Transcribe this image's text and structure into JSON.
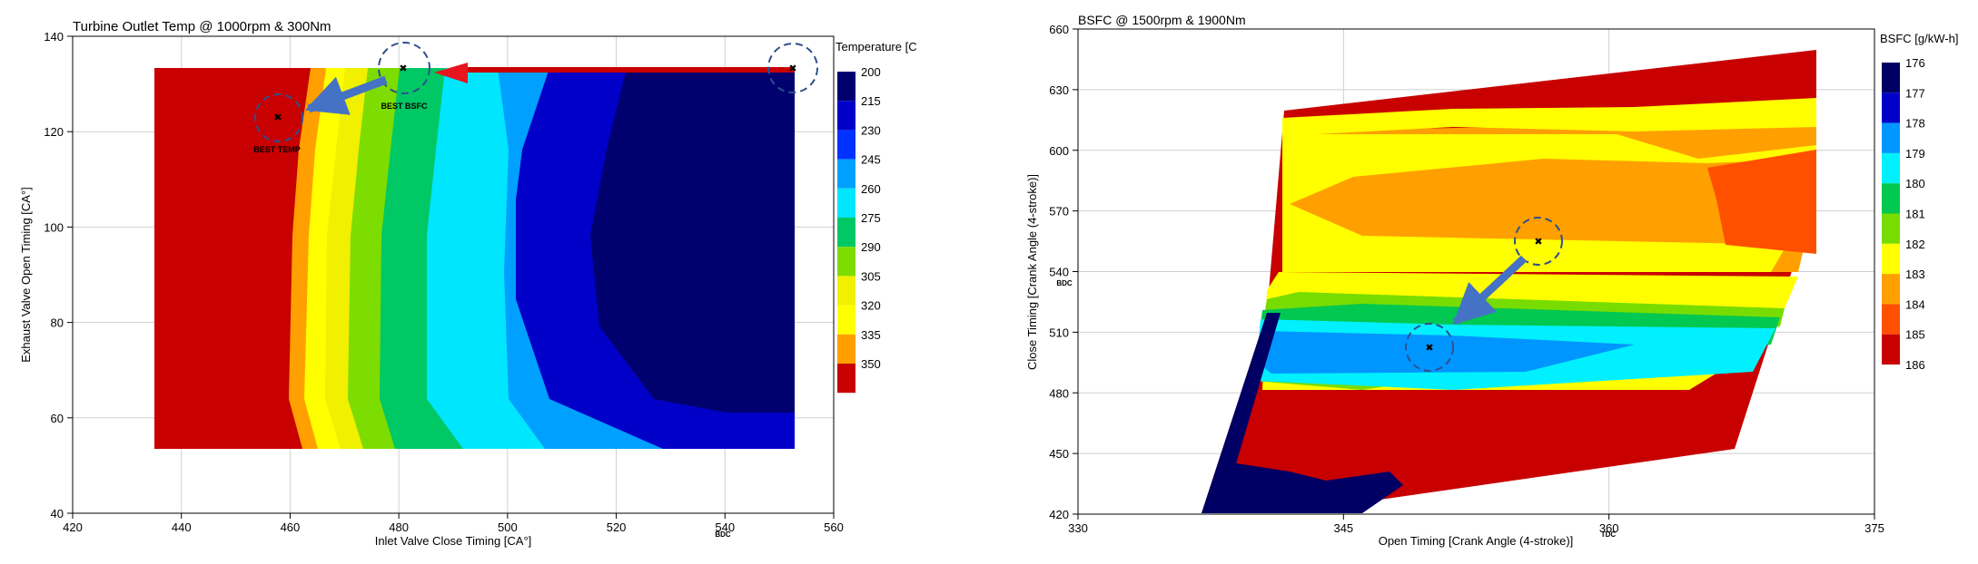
{
  "charts": [
    {
      "type": "contour",
      "title": "Turbine Outlet  Temp @ 1000rpm & 300Nm",
      "xlabel": "Inlet Valve Close Timing [CA°]",
      "ylabel": "Exhaust Valve Open Timing [CA°]",
      "xlim": [
        420,
        560
      ],
      "ylim": [
        40,
        140
      ],
      "xticks": [
        420,
        440,
        460,
        480,
        500,
        520,
        540,
        560
      ],
      "yticks": [
        40,
        60,
        80,
        100,
        120,
        140
      ],
      "tick_note": "BDC",
      "tick_note_x": 540,
      "grid": true,
      "legend": {
        "title": "Temperature [C",
        "position": "right",
        "levels": [
          "200",
          "215",
          "230",
          "245",
          "260",
          "275",
          "290",
          "305",
          "320",
          "335",
          "350"
        ],
        "colors": [
          "#00006e",
          "#0000c8",
          "#0032ff",
          "#00a0ff",
          "#00e6ff",
          "#00c864",
          "#7ddc00",
          "#f0f000",
          "#ffff00",
          "#ffa000",
          "#c80000"
        ]
      },
      "annotations": [
        {
          "label": "BEST  BSFC",
          "x": 481,
          "y": 133,
          "marker_color": "#cc0000"
        },
        {
          "label": "BEST  TEMP",
          "x": 458,
          "y": 123,
          "marker_color": "#0000cc"
        },
        {
          "label": "",
          "x": 553,
          "y": 133,
          "marker_color": "#009900"
        }
      ]
    },
    {
      "type": "contour",
      "title": "BSFC @ 1500rpm & 1900Nm",
      "xlabel": "Open Timing [Crank Angle (4-stroke)]",
      "ylabel": "Close Timing [Crank Angle (4-stroke)]",
      "xlim": [
        330,
        375
      ],
      "ylim": [
        420,
        660
      ],
      "xticks": [
        330,
        345,
        360,
        375
      ],
      "yticks": [
        420,
        450,
        480,
        510,
        540,
        570,
        600,
        630,
        660
      ],
      "tick_note": "TDC",
      "tick_note_x": 360,
      "tick_note_y": "BDC",
      "tick_note_y_val": 540,
      "grid": true,
      "legend": {
        "title": "BSFC [g/kW-h]",
        "position": "right",
        "levels": [
          "176",
          "177",
          "178",
          "179",
          "180",
          "181",
          "182",
          "183",
          "184",
          "185",
          "186"
        ],
        "colors": [
          "#000064",
          "#0000c8",
          "#0096ff",
          "#00f0ff",
          "#00c850",
          "#78dc00",
          "#ffff00",
          "#ffa000",
          "#ff5000",
          "#c80000"
        ]
      },
      "annotations": [
        {
          "label": "",
          "x": 357.5,
          "y": 553,
          "marker_color": "#009900"
        },
        {
          "label": "",
          "x": 350,
          "y": 501,
          "marker_color": "#cc00cc"
        }
      ]
    }
  ]
}
